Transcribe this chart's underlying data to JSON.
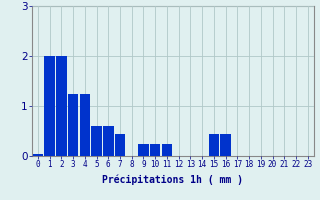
{
  "categories": [
    0,
    1,
    2,
    3,
    4,
    5,
    6,
    7,
    8,
    9,
    10,
    11,
    12,
    13,
    14,
    15,
    16,
    17,
    18,
    19,
    20,
    21,
    22,
    23
  ],
  "values": [
    0.05,
    2.0,
    2.0,
    1.25,
    1.25,
    0.6,
    0.6,
    0.45,
    0.0,
    0.25,
    0.25,
    0.25,
    0.0,
    0.0,
    0.0,
    0.45,
    0.45,
    0.0,
    0.0,
    0.0,
    0.0,
    0.0,
    0.0,
    0.0
  ],
  "bar_color": "#0033cc",
  "background_color": "#e0f0f0",
  "grid_color": "#b0c8c8",
  "xlabel": "Précipitations 1h ( mm )",
  "ylim": [
    0,
    3
  ],
  "xlim": [
    -0.5,
    23.5
  ],
  "yticks": [
    0,
    1,
    2,
    3
  ],
  "xlabel_color": "#000088",
  "tick_color": "#000088",
  "axis_color": "#888888",
  "xlabel_fontsize": 7,
  "tick_fontsize": 5.5,
  "ytick_fontsize": 7.5
}
